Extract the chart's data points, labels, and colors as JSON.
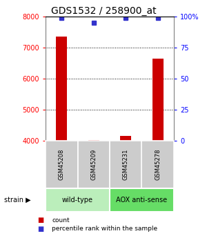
{
  "title": "GDS1532 / 258900_at",
  "samples": [
    "GSM45208",
    "GSM45209",
    "GSM45231",
    "GSM45278"
  ],
  "counts": [
    7350,
    4010,
    4150,
    6650
  ],
  "percentiles": [
    99,
    95,
    99,
    99
  ],
  "ylim_left": [
    4000,
    8000
  ],
  "ylim_right": [
    0,
    100
  ],
  "yticks_left": [
    4000,
    5000,
    6000,
    7000,
    8000
  ],
  "yticks_right": [
    0,
    25,
    50,
    75,
    100
  ],
  "ytick_labels_right": [
    "0",
    "25",
    "50",
    "75",
    "100%"
  ],
  "bar_color": "#cc0000",
  "dot_color": "#3333cc",
  "groups": [
    {
      "label": "wild-type",
      "samples": [
        0,
        1
      ],
      "color": "#bbeebb"
    },
    {
      "label": "AOX anti-sense",
      "samples": [
        2,
        3
      ],
      "color": "#66dd66"
    }
  ],
  "group_label": "strain",
  "legend_count_color": "#cc0000",
  "legend_pct_color": "#3333cc",
  "bg_color": "#ffffff",
  "sample_box_color": "#cccccc",
  "title_fontsize": 10,
  "tick_fontsize": 7,
  "label_fontsize": 7,
  "bar_width": 0.35
}
